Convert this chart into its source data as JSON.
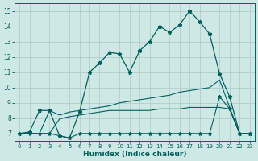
{
  "xlabel": "Humidex (Indice chaleur)",
  "bg_color": "#cde8e5",
  "grid_color": "#b0c8c8",
  "line_color": "#006060",
  "xlim": [
    -0.5,
    23.5
  ],
  "ylim": [
    6.5,
    15.5
  ],
  "xticks": [
    0,
    1,
    2,
    3,
    4,
    5,
    6,
    7,
    8,
    9,
    10,
    11,
    12,
    13,
    14,
    15,
    16,
    17,
    18,
    19,
    20,
    21,
    22,
    23
  ],
  "yticks": [
    7,
    8,
    9,
    10,
    11,
    12,
    13,
    14,
    15
  ],
  "series_main": {
    "x": [
      0,
      1,
      2,
      3,
      4,
      5,
      6,
      7,
      8,
      9,
      10,
      11,
      12,
      13,
      14,
      15,
      16,
      17,
      18,
      19,
      20,
      21,
      22,
      23
    ],
    "y": [
      7.0,
      7.1,
      8.5,
      8.5,
      6.85,
      6.7,
      8.4,
      11.0,
      11.6,
      12.3,
      12.2,
      11.0,
      12.4,
      13.0,
      14.0,
      13.6,
      14.1,
      15.0,
      14.3,
      13.5,
      10.9,
      9.4,
      7.0,
      7.0
    ]
  },
  "series_upper": {
    "x": [
      0,
      1,
      2,
      3,
      4,
      5,
      6,
      7,
      8,
      9,
      10,
      11,
      12,
      13,
      14,
      15,
      16,
      17,
      18,
      19,
      20,
      21,
      22,
      23
    ],
    "y": [
      7.0,
      7.0,
      7.0,
      8.5,
      8.2,
      8.4,
      8.5,
      8.6,
      8.7,
      8.8,
      9.0,
      9.1,
      9.2,
      9.3,
      9.4,
      9.5,
      9.7,
      9.8,
      9.9,
      10.0,
      10.5,
      8.7,
      7.0,
      7.0
    ]
  },
  "series_lower": {
    "x": [
      0,
      1,
      2,
      3,
      4,
      5,
      6,
      7,
      8,
      9,
      10,
      11,
      12,
      13,
      14,
      15,
      16,
      17,
      18,
      19,
      20,
      21,
      22,
      23
    ],
    "y": [
      7.0,
      7.0,
      7.0,
      7.0,
      7.95,
      8.1,
      8.2,
      8.3,
      8.4,
      8.5,
      8.5,
      8.5,
      8.5,
      8.5,
      8.6,
      8.6,
      8.6,
      8.7,
      8.7,
      8.7,
      8.7,
      8.6,
      7.0,
      7.0
    ]
  },
  "series_bottom": {
    "x": [
      0,
      1,
      2,
      3,
      4,
      5,
      6,
      7,
      8,
      9,
      10,
      11,
      12,
      13,
      14,
      15,
      16,
      17,
      18,
      19,
      20,
      21,
      22,
      23
    ],
    "y": [
      7.0,
      7.0,
      7.0,
      7.0,
      6.85,
      6.7,
      7.0,
      7.0,
      7.0,
      7.0,
      7.0,
      7.0,
      7.0,
      7.0,
      7.0,
      7.0,
      7.0,
      7.0,
      7.0,
      7.0,
      9.4,
      8.6,
      7.0,
      7.0
    ]
  }
}
